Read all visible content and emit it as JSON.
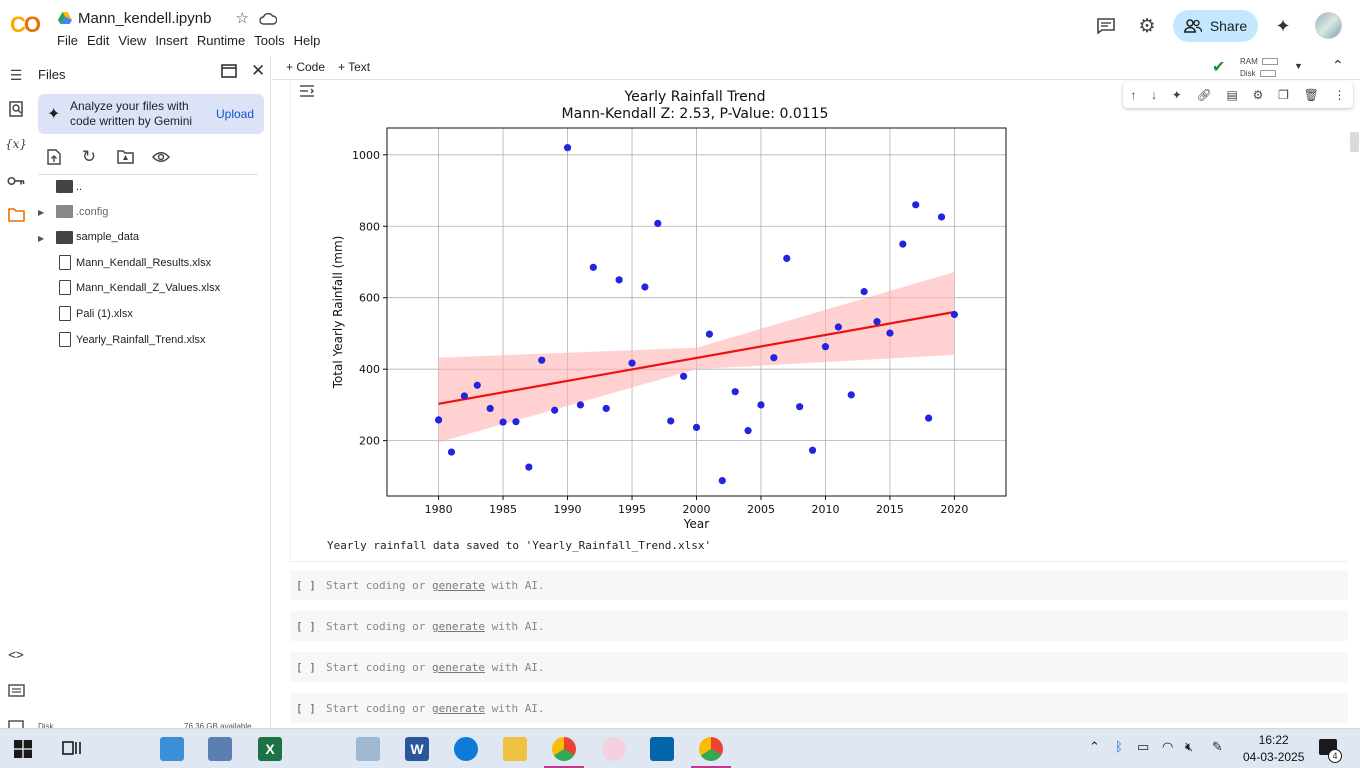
{
  "window": {
    "notebook_name": "Mann_kendell.ipynb",
    "menu": [
      "File",
      "Edit",
      "View",
      "Insert",
      "Runtime",
      "Tools",
      "Help"
    ],
    "share_label": "Share"
  },
  "files_panel": {
    "title": "Files",
    "gemini_text_line1": "Analyze your files with",
    "gemini_text_line2": "code written by Gemini",
    "upload_label": "Upload",
    "items": [
      {
        "name": "..",
        "kind": "folder-up"
      },
      {
        "name": ".config",
        "kind": "folder"
      },
      {
        "name": "sample_data",
        "kind": "folder"
      },
      {
        "name": "Mann_Kendall_Results.xlsx",
        "kind": "file"
      },
      {
        "name": "Mann_Kendall_Z_Values.xlsx",
        "kind": "file"
      },
      {
        "name": "Pali (1).xlsx",
        "kind": "file"
      },
      {
        "name": "Yearly_Rainfall_Trend.xlsx",
        "kind": "file"
      }
    ],
    "disk_label": "Disk",
    "disk_available": "76.36 GB available"
  },
  "cellbar": {
    "code_label": "+ Code",
    "text_label": "+ Text",
    "ram_label": "RAM",
    "disk_label": "Disk"
  },
  "output": {
    "saved_message": "Yearly rainfall data saved to 'Yearly_Rainfall_Trend.xlsx'"
  },
  "empty_cells": {
    "bracket": "[ ]",
    "prefix": "Start coding or ",
    "link": "generate",
    "suffix": " with AI.",
    "count": 4
  },
  "taskbar": {
    "time": "16:22",
    "date": "04-03-2025",
    "notification_count": "4"
  },
  "colors": {
    "points": "#2323e0",
    "trend_line": "#ee1111",
    "confidence_band": "#ffb3b3",
    "share_bg": "#c2e7ff"
  },
  "chart_data": {
    "type": "scatter",
    "title": "Yearly Rainfall Trend",
    "subtitle": "Mann-Kendall Z: 2.53, P-Value: 0.0115",
    "xlabel": "Year",
    "ylabel": "Total Yearly Rainfall (mm)",
    "xlim": [
      1976,
      2024
    ],
    "ylim": [
      45,
      1075
    ],
    "xticks": [
      1980,
      1985,
      1990,
      1995,
      2000,
      2005,
      2010,
      2015,
      2020
    ],
    "yticks": [
      200,
      400,
      600,
      800,
      1000
    ],
    "grid": true,
    "points": {
      "x": [
        1980,
        1981,
        1982,
        1983,
        1984,
        1985,
        1986,
        1987,
        1988,
        1989,
        1990,
        1991,
        1992,
        1993,
        1994,
        1995,
        1996,
        1997,
        1998,
        1999,
        2000,
        2001,
        2002,
        2003,
        2004,
        2005,
        2006,
        2007,
        2008,
        2009,
        2010,
        2011,
        2012,
        2013,
        2014,
        2015,
        2016,
        2017,
        2018,
        2019,
        2020
      ],
      "y": [
        258,
        168,
        325,
        355,
        290,
        252,
        253,
        126,
        425,
        285,
        1020,
        300,
        685,
        290,
        650,
        417,
        630,
        808,
        255,
        380,
        237,
        498,
        88,
        337,
        228,
        300,
        432,
        710,
        295,
        173,
        463,
        518,
        328,
        617,
        533,
        501,
        750,
        860,
        263,
        826,
        553
      ]
    },
    "trend_line": {
      "x": [
        1980,
        2020
      ],
      "y": [
        303,
        560
      ]
    },
    "confidence_band": {
      "x": [
        1980,
        2000,
        2020
      ],
      "upper": [
        432,
        460,
        672
      ],
      "lower": [
        195,
        400,
        440
      ]
    }
  }
}
